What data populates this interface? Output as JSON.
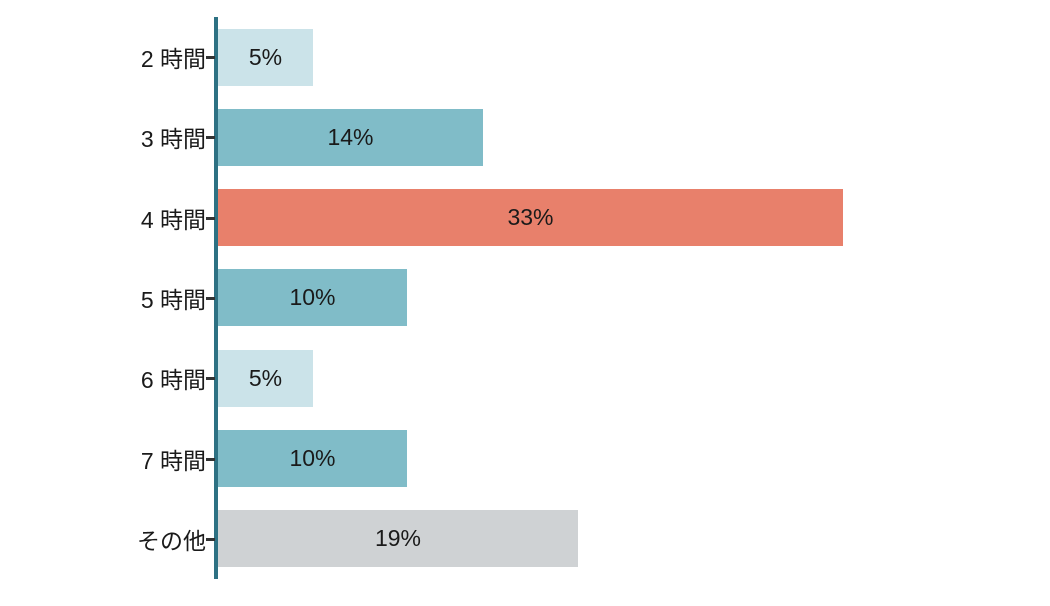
{
  "chart_data": {
    "type": "bar",
    "orientation": "horizontal",
    "title": "",
    "xlabel": "",
    "ylabel": "",
    "categories": [
      "2 時間",
      "3 時間",
      "4 時間",
      "5 時間",
      "6 時間",
      "7 時間",
      "その他"
    ],
    "values": [
      5,
      14,
      33,
      10,
      5,
      10,
      19
    ],
    "value_labels": [
      "5%",
      "14%",
      "33%",
      "10%",
      "5%",
      "10%",
      "19%"
    ],
    "bar_colors": [
      "#cbe3e9",
      "#80bcc8",
      "#e8806b",
      "#80bcc8",
      "#cbe3e9",
      "#80bcc8",
      "#cfd2d4"
    ],
    "value_label_position": "center-inside",
    "xlim": [
      0,
      33
    ],
    "grid": false,
    "legend": false,
    "axis_line_color": "#2d7183",
    "tick_color": "#333333",
    "text_color": "#1a1a1a"
  }
}
